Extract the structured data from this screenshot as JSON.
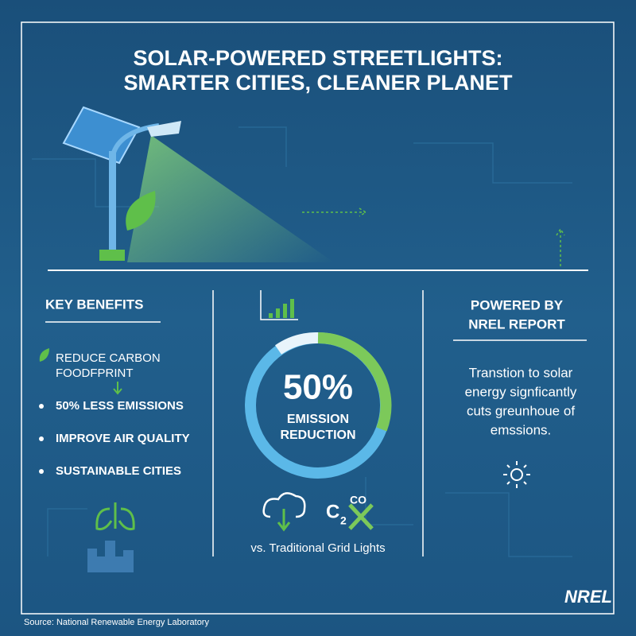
{
  "header": {
    "title_lines": [
      "SOLAR-POWERED STREETLIGHTS:",
      "SMARTER CITIES, CLEANER PLANET"
    ]
  },
  "benefits": {
    "heading": "KEY BENEFITS",
    "items": [
      [
        "REDUCE CARBON",
        "FOODFPRINT"
      ],
      [
        "50% LESS EMISSIONS"
      ],
      [
        "IMPROVE AIR QUALITY"
      ],
      [
        "SUSTAINABLE CITIES"
      ]
    ]
  },
  "center": {
    "big_figure": "50%",
    "caption_lines": [
      "EMISSION",
      "REDUCTION"
    ],
    "co2_icon": {
      "letter": "C",
      "subscript": "2",
      "superscript": "CO"
    },
    "comparison": "vs. Traditional Grid Lights"
  },
  "report": {
    "heading_lines": [
      "POWERED BY",
      "NREL REPORT"
    ],
    "text_lines": [
      "Transtion to solar",
      "energy signficantly",
      "cuts greunhoue of",
      "emssions."
    ]
  },
  "logo": "NREL",
  "footer": {
    "source": "Source: National Renewable Energy Laboratory"
  }
}
